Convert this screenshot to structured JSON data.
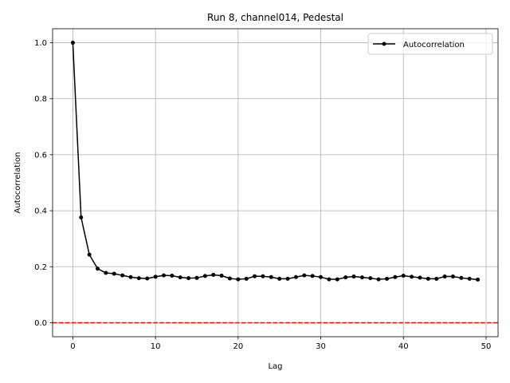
{
  "chart_data": {
    "type": "line",
    "title": "Run 8, channel014, Pedestal",
    "xlabel": "Lag",
    "ylabel": "Autocorrelation",
    "xlim": [
      -2.45,
      51.45
    ],
    "ylim": [
      -0.05,
      1.05
    ],
    "xticks": [
      0,
      10,
      20,
      30,
      40,
      50
    ],
    "yticks": [
      0.0,
      0.2,
      0.4,
      0.6,
      0.8,
      1.0
    ],
    "xtick_labels": [
      "0",
      "10",
      "20",
      "30",
      "40",
      "50"
    ],
    "ytick_labels": [
      "0.0",
      "0.2",
      "0.4",
      "0.6",
      "0.8",
      "1.0"
    ],
    "grid": true,
    "legend_position": "upper right",
    "series": [
      {
        "name": "Autocorrelation",
        "color": "#000000",
        "marker": "circle",
        "x": [
          0,
          1,
          2,
          3,
          4,
          5,
          6,
          7,
          8,
          9,
          10,
          11,
          12,
          13,
          14,
          15,
          16,
          17,
          18,
          19,
          20,
          21,
          22,
          23,
          24,
          25,
          26,
          27,
          28,
          29,
          30,
          31,
          32,
          33,
          34,
          35,
          36,
          37,
          38,
          39,
          40,
          41,
          42,
          43,
          44,
          45,
          46,
          47,
          48,
          49
        ],
        "values": [
          1.0,
          0.376,
          0.243,
          0.193,
          0.178,
          0.175,
          0.169,
          0.163,
          0.159,
          0.158,
          0.164,
          0.169,
          0.168,
          0.162,
          0.159,
          0.16,
          0.167,
          0.171,
          0.168,
          0.158,
          0.155,
          0.157,
          0.166,
          0.166,
          0.163,
          0.157,
          0.157,
          0.163,
          0.169,
          0.167,
          0.163,
          0.155,
          0.155,
          0.162,
          0.165,
          0.162,
          0.159,
          0.155,
          0.157,
          0.163,
          0.168,
          0.164,
          0.161,
          0.157,
          0.157,
          0.165,
          0.165,
          0.16,
          0.157,
          0.154
        ]
      }
    ],
    "reference_lines": [
      {
        "axis": "y",
        "value": 0.0,
        "color": "#ff0000",
        "style": "dashed"
      }
    ]
  }
}
